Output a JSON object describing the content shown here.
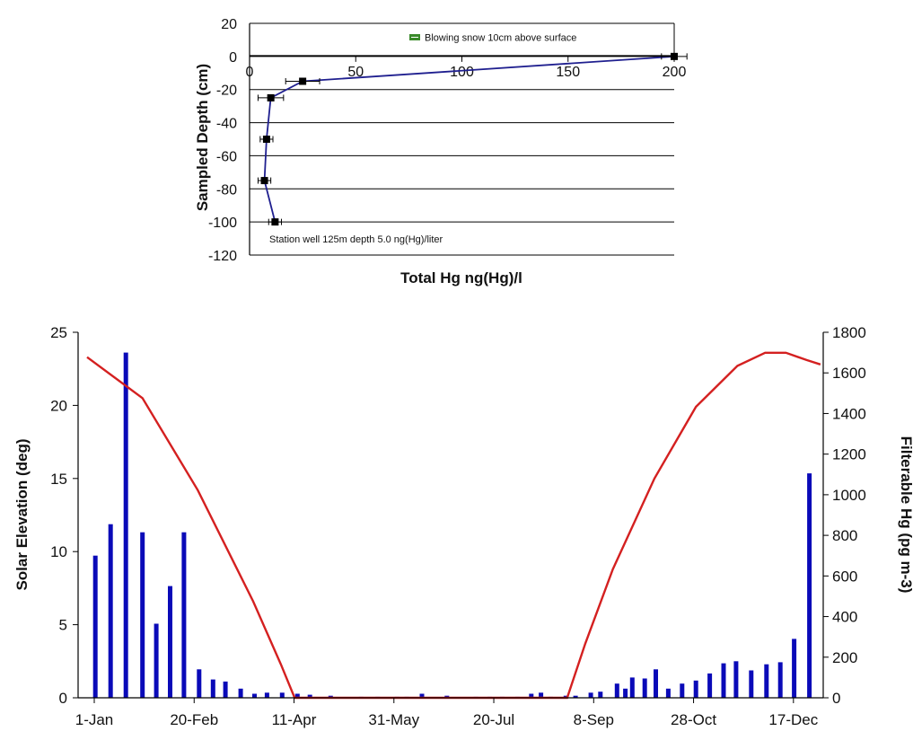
{
  "chart_data": [
    {
      "type": "line",
      "title": "",
      "xlabel": "Total Hg ng(Hg)/l",
      "ylabel": "Sampled Depth (cm)",
      "xlim": [
        0,
        200
      ],
      "ylim": [
        -120,
        20
      ],
      "x_ticks": [
        "0",
        "50",
        "100",
        "150",
        "200"
      ],
      "y_ticks": [
        "20",
        "0",
        "-20",
        "-40",
        "-60",
        "-80",
        "-100",
        "-120"
      ],
      "grid": "horizontal",
      "series": [
        {
          "points": [
            {
              "x": 200,
              "y": 0
            },
            {
              "x": 25,
              "y": -15
            },
            {
              "x": 10,
              "y": -25
            },
            {
              "x": 8,
              "y": -50
            },
            {
              "x": 7,
              "y": -75
            },
            {
              "x": 12,
              "y": -100
            }
          ],
          "error_x": [
            6,
            8,
            6,
            3,
            3,
            3
          ],
          "color": "#1f1f8f"
        }
      ],
      "legend": {
        "label": "Blowing snow 10cm above surface",
        "color": "#3a8a2a",
        "position": "top-right"
      },
      "annotation": "Station well 125m depth 5.0 ng(Hg)/liter"
    },
    {
      "type": "bar+line",
      "xlabel": "",
      "ylabel_left": "Solar Elevation (deg)",
      "ylabel_right": "Filterable Hg (pg m-3)",
      "ylim_left": [
        0,
        25
      ],
      "ylim_right": [
        0,
        1800
      ],
      "x_tick_labels": [
        "1-Jan",
        "20-Feb",
        "11-Apr",
        "31-May",
        "20-Jul",
        "8-Sep",
        "28-Oct",
        "17-Dec"
      ],
      "y_left_ticks": [
        "0",
        "5",
        "10",
        "15",
        "20",
        "25"
      ],
      "y_right_ticks": [
        "0",
        "200",
        "400",
        "600",
        "800",
        "1000",
        "1200",
        "1400",
        "1600",
        "1800"
      ],
      "bars": {
        "name": "Filterable Hg",
        "axis": "right",
        "color": "#0a0ab8",
        "days": [
          6,
          17,
          28,
          40,
          50,
          60,
          70,
          81,
          91,
          100,
          111,
          121,
          130,
          141,
          152,
          161,
          176,
          198,
          210,
          224,
          231,
          242,
          260,
          281,
          291,
          300,
          311,
          321,
          328,
          335,
          346,
          353,
          364,
          371,
          383,
          389,
          394,
          403,
          411,
          420,
          430,
          440,
          450,
          460,
          469,
          480,
          491,
          501,
          511,
          522
        ],
        "values": [
          700,
          855,
          1700,
          815,
          365,
          550,
          815,
          140,
          90,
          80,
          45,
          20,
          25,
          25,
          20,
          15,
          10,
          5,
          5,
          5,
          5,
          20,
          10,
          5,
          5,
          5,
          5,
          20,
          25,
          5,
          10,
          10,
          25,
          30,
          70,
          45,
          100,
          95,
          140,
          45,
          70,
          85,
          120,
          170,
          180,
          135,
          165,
          175,
          290,
          1105
        ]
      },
      "line": {
        "name": "Solar Elevation",
        "axis": "left",
        "color": "#d42020",
        "points": [
          {
            "x": 0,
            "y": 23.3
          },
          {
            "x": 40,
            "y": 20.5
          },
          {
            "x": 80,
            "y": 14.2
          },
          {
            "x": 120,
            "y": 6.6
          },
          {
            "x": 140,
            "y": 2.3
          },
          {
            "x": 150,
            "y": 0
          },
          {
            "x": 347,
            "y": 0
          },
          {
            "x": 360,
            "y": 3.7
          },
          {
            "x": 380,
            "y": 8.8
          },
          {
            "x": 410,
            "y": 15.0
          },
          {
            "x": 440,
            "y": 19.9
          },
          {
            "x": 470,
            "y": 22.7
          },
          {
            "x": 490,
            "y": 23.6
          },
          {
            "x": 505,
            "y": 23.6
          },
          {
            "x": 520,
            "y": 23.1
          },
          {
            "x": 530,
            "y": 22.8
          }
        ]
      }
    }
  ]
}
